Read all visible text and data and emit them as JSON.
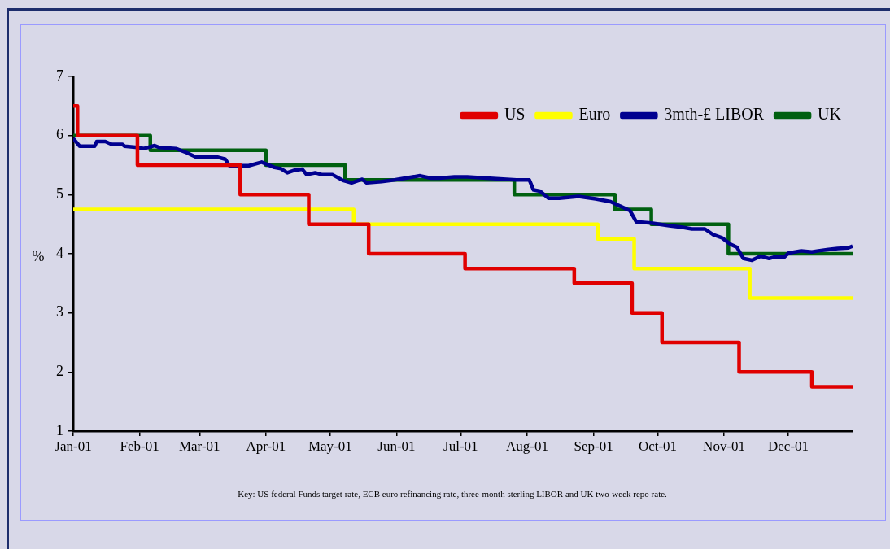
{
  "chart_data": {
    "type": "step",
    "ylabel": "%",
    "xlim": [
      "--01-01",
      "--12-31"
    ],
    "xticks": [
      {
        "value": "--01-01",
        "label": "Jan-01"
      },
      {
        "value": "--02-01",
        "label": "Feb-01"
      },
      {
        "value": "--03-01",
        "label": "Mar-01"
      },
      {
        "value": "--04-01",
        "label": "Apr-01"
      },
      {
        "value": "--05-01",
        "label": "May-01"
      },
      {
        "value": "--06-01",
        "label": "Jun-01"
      },
      {
        "value": "--07-01",
        "label": "Jul-01"
      },
      {
        "value": "--08-01",
        "label": "Aug-01"
      },
      {
        "value": "--09-01",
        "label": "Sep-01"
      },
      {
        "value": "--10-01",
        "label": "Oct-01"
      },
      {
        "value": "--11-01",
        "label": "Nov-01"
      },
      {
        "value": "--12-01",
        "label": "Dec-01"
      }
    ],
    "ylim": [
      1,
      7
    ],
    "yticks": [
      1,
      2,
      3,
      4,
      5,
      6,
      7
    ],
    "grid": false,
    "legend": "top right",
    "series": [
      {
        "name": "US",
        "color": "#e00000",
        "x": [
          "--01-01",
          "--01-03",
          "--01-31",
          "--03-20",
          "--04-21",
          "--05-19",
          "--07-03",
          "--08-23",
          "--09-19",
          "--10-03",
          "--11-08",
          "--12-12",
          "--12-31"
        ],
        "values": [
          6.5,
          6.0,
          5.5,
          5.0,
          4.5,
          4.0,
          3.75,
          3.5,
          3.0,
          2.5,
          2.0,
          1.75,
          1.75
        ]
      },
      {
        "name": "Euro",
        "color": "#ffff00",
        "x": [
          "--01-01",
          "--05-12",
          "--09-03",
          "--09-20",
          "--11-13",
          "--12-31"
        ],
        "values": [
          4.75,
          4.5,
          4.25,
          3.75,
          3.25,
          3.25
        ]
      },
      {
        "name": "3mth-£ LIBOR",
        "color": "#000090",
        "type": "line",
        "x": [
          "--01-01",
          "--01-04",
          "--01-11",
          "--01-12",
          "--01-16",
          "--01-19",
          "--01-24",
          "--01-25",
          "--01-31",
          "--02-03",
          "--02-08",
          "--02-10",
          "--02-18",
          "--02-23",
          "--02-27",
          "--03-09",
          "--03-13",
          "--03-15",
          "--03-24",
          "--03-30",
          "--04-05",
          "--04-08",
          "--04-11",
          "--04-14",
          "--04-18",
          "--04-20",
          "--04-24",
          "--04-27",
          "--05-02",
          "--05-07",
          "--05-11",
          "--05-16",
          "--05-18",
          "--05-25",
          "--05-31",
          "--06-12",
          "--06-17",
          "--06-21",
          "--06-28",
          "--07-04",
          "--07-13",
          "--07-27",
          "--08-02",
          "--08-04",
          "--08-07",
          "--08-11",
          "--08-16",
          "--08-25",
          "--09-02",
          "--09-09",
          "--09-18",
          "--09-21",
          "--09-28",
          "--10-07",
          "--10-12",
          "--10-17",
          "--10-23",
          "--10-27",
          "--10-31",
          "--11-04",
          "--11-07",
          "--11-10",
          "--11-14",
          "--11-18",
          "--11-22",
          "--11-24",
          "--11-29",
          "--12-01",
          "--12-07",
          "--12-12",
          "--12-15",
          "--12-24",
          "--12-29",
          "--12-31"
        ],
        "values": [
          5.95,
          5.82,
          5.82,
          5.9,
          5.9,
          5.85,
          5.85,
          5.82,
          5.8,
          5.78,
          5.83,
          5.8,
          5.78,
          5.71,
          5.64,
          5.64,
          5.6,
          5.49,
          5.49,
          5.55,
          5.46,
          5.44,
          5.37,
          5.41,
          5.43,
          5.34,
          5.37,
          5.34,
          5.34,
          5.24,
          5.2,
          5.26,
          5.2,
          5.22,
          5.25,
          5.32,
          5.28,
          5.28,
          5.3,
          5.3,
          5.28,
          5.25,
          5.25,
          5.08,
          5.06,
          4.94,
          4.94,
          4.97,
          4.93,
          4.88,
          4.73,
          4.54,
          4.52,
          4.47,
          4.45,
          4.42,
          4.42,
          4.32,
          4.27,
          4.16,
          4.11,
          3.92,
          3.89,
          3.96,
          3.92,
          3.94,
          3.94,
          4.01,
          4.05,
          4.03,
          4.05,
          4.09,
          4.1,
          4.13
        ]
      },
      {
        "name": "UK",
        "color": "#006010",
        "x": [
          "--01-01",
          "--02-06",
          "--04-01",
          "--05-08",
          "--07-26",
          "--09-11",
          "--09-28",
          "--11-03",
          "--12-31"
        ],
        "values": [
          6.0,
          5.75,
          5.5,
          5.25,
          5.0,
          4.75,
          4.5,
          4.0,
          4.0
        ]
      }
    ],
    "annotations": [
      "Key: US federal Funds target rate, ECB euro refinancing rate, three-month sterling LIBOR and UK two-week repo rate."
    ]
  }
}
